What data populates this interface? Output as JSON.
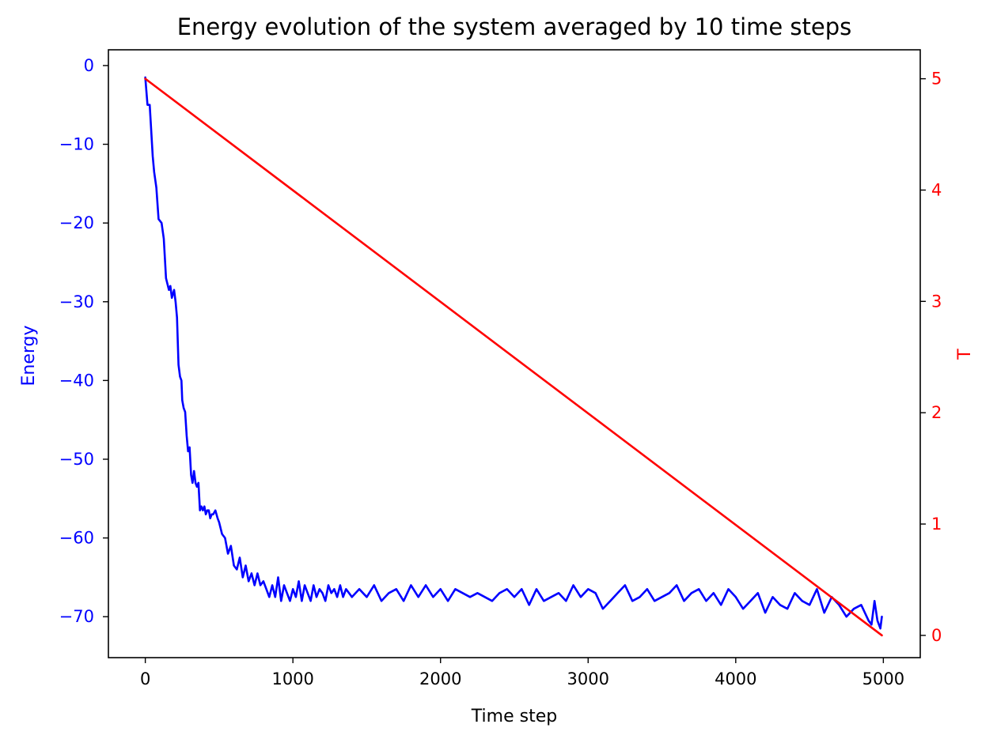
{
  "chart_data": {
    "type": "line",
    "title": "Energy evolution of the system averaged by 10 time steps",
    "xlabel": "Time step",
    "ylabel_left": "Energy",
    "ylabel_right": "T",
    "xlim": [
      -250,
      5250
    ],
    "ylim_left": [
      -75.2,
      2.0
    ],
    "ylim_right": [
      -0.2,
      5.26
    ],
    "x_ticks": [
      0,
      1000,
      2000,
      3000,
      4000,
      5000
    ],
    "y_left_ticks": [
      0,
      -10,
      -20,
      -30,
      -40,
      -50,
      -60,
      -70
    ],
    "y_right_ticks": [
      0,
      1,
      2,
      3,
      4,
      5
    ],
    "grid": false,
    "colors": {
      "energy": "#0000ff",
      "temperature": "#ff0000",
      "axes": "#000000"
    },
    "series": [
      {
        "axis": "left",
        "color": "#0000ff",
        "x": [
          0,
          15,
          30,
          50,
          60,
          75,
          90,
          110,
          125,
          140,
          160,
          170,
          180,
          195,
          205,
          215,
          225,
          235,
          245,
          250,
          260,
          270,
          280,
          290,
          300,
          310,
          320,
          330,
          340,
          350,
          360,
          370,
          380,
          390,
          400,
          410,
          420,
          430,
          440,
          450,
          460,
          475,
          490,
          500,
          520,
          540,
          560,
          580,
          600,
          620,
          640,
          660,
          680,
          700,
          720,
          740,
          760,
          780,
          800,
          820,
          840,
          860,
          880,
          900,
          920,
          940,
          960,
          980,
          1000,
          1020,
          1040,
          1060,
          1080,
          1100,
          1120,
          1140,
          1160,
          1180,
          1200,
          1220,
          1240,
          1260,
          1280,
          1300,
          1320,
          1340,
          1360,
          1380,
          1400,
          1450,
          1500,
          1550,
          1600,
          1650,
          1700,
          1750,
          1800,
          1850,
          1900,
          1950,
          2000,
          2050,
          2100,
          2150,
          2200,
          2250,
          2300,
          2350,
          2400,
          2450,
          2500,
          2550,
          2600,
          2650,
          2700,
          2750,
          2800,
          2850,
          2900,
          2950,
          3000,
          3050,
          3100,
          3150,
          3200,
          3250,
          3300,
          3350,
          3400,
          3450,
          3500,
          3550,
          3600,
          3650,
          3700,
          3750,
          3800,
          3850,
          3900,
          3950,
          4000,
          4050,
          4100,
          4150,
          4200,
          4250,
          4300,
          4350,
          4400,
          4450,
          4500,
          4550,
          4600,
          4650,
          4700,
          4750,
          4800,
          4850,
          4900,
          4920,
          4940,
          4960,
          4980,
          4990
        ],
        "values": [
          -1.5,
          -5.0,
          -5.0,
          -11.5,
          -13.5,
          -15.5,
          -19.5,
          -20.0,
          -22.0,
          -27.0,
          -28.5,
          -28.0,
          -29.5,
          -28.5,
          -30.0,
          -32.0,
          -38.0,
          -39.5,
          -40.0,
          -42.5,
          -43.5,
          -44.0,
          -47.0,
          -49.0,
          -48.5,
          -52.0,
          -53.0,
          -51.5,
          -53.0,
          -53.5,
          -53.0,
          -56.5,
          -56.0,
          -56.5,
          -56.0,
          -57.0,
          -56.5,
          -56.5,
          -57.5,
          -57.0,
          -57.0,
          -56.5,
          -57.5,
          -58.0,
          -59.5,
          -60.0,
          -62.0,
          -61.0,
          -63.5,
          -64.0,
          -62.5,
          -65.0,
          -63.5,
          -65.5,
          -64.5,
          -66.0,
          -64.5,
          -66.0,
          -65.5,
          -66.5,
          -67.5,
          -66.0,
          -67.5,
          -65.0,
          -68.0,
          -66.0,
          -67.0,
          -68.0,
          -66.5,
          -67.5,
          -65.5,
          -68.0,
          -66.0,
          -67.0,
          -68.0,
          -66.0,
          -67.5,
          -66.5,
          -67.0,
          -68.0,
          -66.0,
          -67.0,
          -66.5,
          -67.5,
          -66.0,
          -67.5,
          -66.5,
          -67.0,
          -67.5,
          -66.5,
          -67.5,
          -66.0,
          -68.0,
          -67.0,
          -66.5,
          -68.0,
          -66.0,
          -67.5,
          -66.0,
          -67.5,
          -66.5,
          -68.0,
          -66.5,
          -67.0,
          -67.5,
          -67.0,
          -67.5,
          -68.0,
          -67.0,
          -66.5,
          -67.5,
          -66.5,
          -68.5,
          -66.5,
          -68.0,
          -67.5,
          -67.0,
          -68.0,
          -66.0,
          -67.5,
          -66.5,
          -67.0,
          -69.0,
          -68.0,
          -67.0,
          -66.0,
          -68.0,
          -67.5,
          -66.5,
          -68.0,
          -67.5,
          -67.0,
          -66.0,
          -68.0,
          -67.0,
          -66.5,
          -68.0,
          -67.0,
          -68.5,
          -66.5,
          -67.5,
          -69.0,
          -68.0,
          -67.0,
          -69.5,
          -67.5,
          -68.5,
          -69.0,
          -67.0,
          -68.0,
          -68.5,
          -66.5,
          -69.5,
          -67.5,
          -68.5,
          -70.0,
          -69.0,
          -68.5,
          -70.5,
          -71.0,
          -68.0,
          -70.5,
          -71.5,
          -70.0
        ]
      },
      {
        "axis": "right",
        "color": "#ff0000",
        "x": [
          0,
          4990
        ],
        "values": [
          5.0,
          0.0
        ]
      }
    ]
  }
}
